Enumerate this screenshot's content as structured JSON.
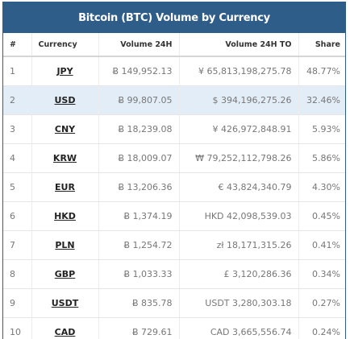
{
  "title": "Bitcoin (BTC) Volume by Currency",
  "columns": {
    "rank": "#",
    "currency": "Currency",
    "volume": "Volume 24H",
    "volume_to": "Volume 24H TO",
    "share": "Share"
  },
  "rows": [
    {
      "rank": "1",
      "currency": "JPY",
      "volume": "Ƀ 149,952.13",
      "volume_to": "¥ 65,813,198,275.78",
      "share": "48.77%"
    },
    {
      "rank": "2",
      "currency": "USD",
      "volume": "Ƀ 99,807.05",
      "volume_to": "$ 394,196,275.26",
      "share": "32.46%"
    },
    {
      "rank": "3",
      "currency": "CNY",
      "volume": "Ƀ 18,239.08",
      "volume_to": "¥ 426,972,848.91",
      "share": "5.93%"
    },
    {
      "rank": "4",
      "currency": "KRW",
      "volume": "Ƀ 18,009.07",
      "volume_to": "₩ 79,252,112,798.26",
      "share": "5.86%"
    },
    {
      "rank": "5",
      "currency": "EUR",
      "volume": "Ƀ 13,206.36",
      "volume_to": "€ 43,824,340.79",
      "share": "4.30%"
    },
    {
      "rank": "6",
      "currency": "HKD",
      "volume": "Ƀ 1,374.19",
      "volume_to": "HKD 42,098,539.03",
      "share": "0.45%"
    },
    {
      "rank": "7",
      "currency": "PLN",
      "volume": "Ƀ 1,254.72",
      "volume_to": "zł 18,171,315.26",
      "share": "0.41%"
    },
    {
      "rank": "8",
      "currency": "GBP",
      "volume": "Ƀ 1,033.33",
      "volume_to": "£ 3,120,286.36",
      "share": "0.34%"
    },
    {
      "rank": "9",
      "currency": "USDT",
      "volume": "Ƀ 835.78",
      "volume_to": "USDT 3,280,303.18",
      "share": "0.27%"
    },
    {
      "rank": "10",
      "currency": "CAD",
      "volume": "Ƀ 729.61",
      "volume_to": "CAD 3,665,556.74",
      "share": "0.24%"
    }
  ],
  "highlighted_row": 1,
  "colors": {
    "header_bg": "#2f5d8a",
    "highlight_row": "#e3edf7"
  }
}
